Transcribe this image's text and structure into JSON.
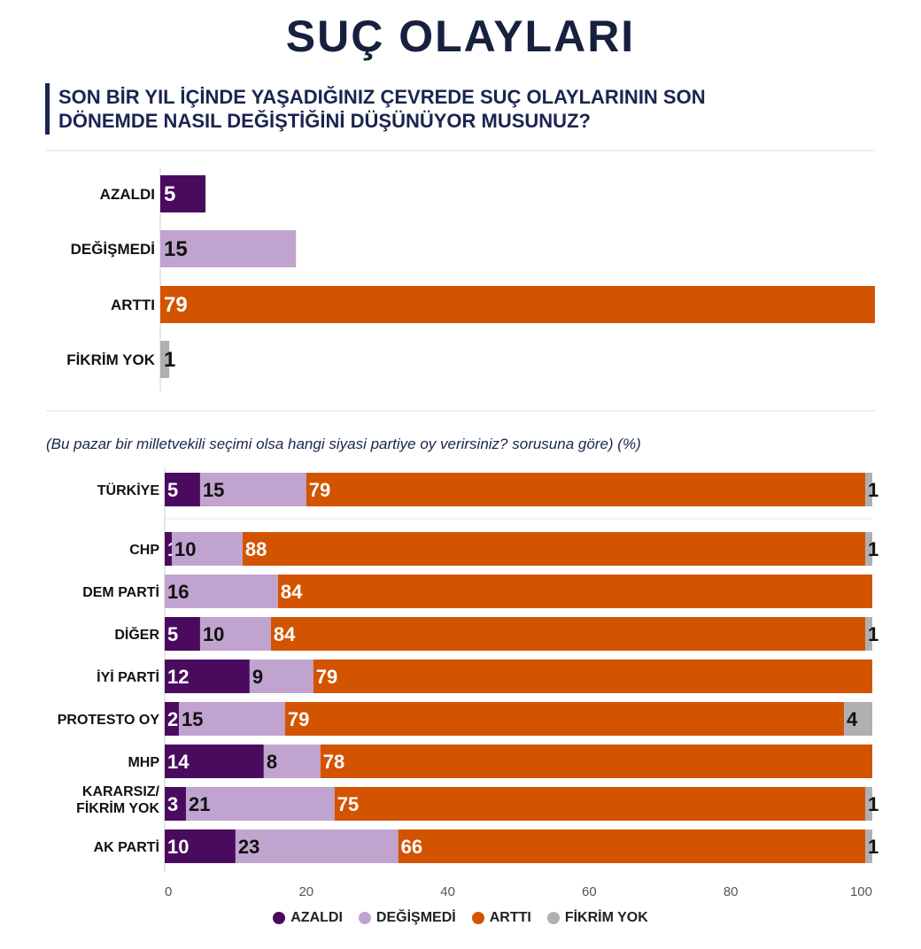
{
  "header": {
    "title": "SUÇ OLAYLARI",
    "question_line1": "SON BİR YIL İÇİNDE YAŞADIĞINIZ ÇEVREDE SUÇ OLAYLARININ SON",
    "question_line2": "DÖNEMDE NASIL DEĞİŞTİĞİNİ DÜŞÜNÜYOR MUSUNUZ?",
    "subtitle": "(Bu pazar bir milletvekili seçimi olsa hangi siyasi partiye oy verirsiniz? sorusuna göre) (%)"
  },
  "colors": {
    "azaldi": "#4a0a5e",
    "degismedi": "#c0a4cf",
    "artti": "#d35400",
    "fikrim_yok": "#b0b0b0"
  },
  "chart_data": [
    {
      "type": "bar",
      "orientation": "horizontal",
      "categories": [
        "AZALDI",
        "DEĞİŞMEDİ",
        "ARTTI",
        "FİKRİM YOK"
      ],
      "values": [
        5,
        15,
        79,
        1
      ],
      "xlim": [
        0,
        79
      ]
    },
    {
      "type": "bar",
      "orientation": "horizontal",
      "stacked": true,
      "categories": [
        "TÜRKİYE",
        "CHP",
        "DEM PARTİ",
        "DİĞER",
        "İYİ PARTİ",
        "PROTESTO OY",
        "MHP",
        "KARARSIZ/ FİKRİM YOK",
        "AK PARTİ"
      ],
      "category_lines": [
        [
          "TÜRKİYE"
        ],
        [
          "CHP"
        ],
        [
          "DEM PARTİ"
        ],
        [
          "DİĞER"
        ],
        [
          "İYİ PARTİ"
        ],
        [
          "PROTESTO OY"
        ],
        [
          "MHP"
        ],
        [
          "KARARSIZ/",
          "FİKRİM YOK"
        ],
        [
          "AK PARTİ"
        ]
      ],
      "series": [
        {
          "name": "AZALDI",
          "values": [
            5,
            1,
            0,
            5,
            12,
            2,
            14,
            3,
            10
          ]
        },
        {
          "name": "DEĞİŞMEDİ",
          "values": [
            15,
            10,
            16,
            10,
            9,
            15,
            8,
            21,
            23
          ]
        },
        {
          "name": "ARTTI",
          "values": [
            79,
            88,
            84,
            84,
            79,
            79,
            78,
            75,
            66
          ]
        },
        {
          "name": "FİKRİM YOK",
          "values": [
            1,
            1,
            0,
            1,
            0,
            4,
            0,
            1,
            1
          ]
        }
      ],
      "xlim": [
        0,
        100
      ],
      "xticks": [
        0,
        20,
        40,
        60,
        80,
        100
      ],
      "legend": [
        "AZALDI",
        "DEĞİŞMEDİ",
        "ARTTI",
        "FİKRİM YOK"
      ],
      "legend_position": "bottom"
    }
  ]
}
